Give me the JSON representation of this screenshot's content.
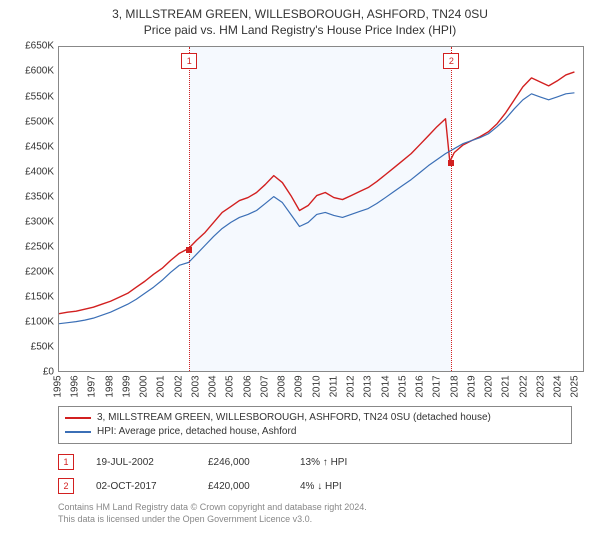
{
  "title_line1": "3, MILLSTREAM GREEN, WILLESBOROUGH, ASHFORD, TN24 0SU",
  "title_line2": "Price paid vs. HM Land Registry's House Price Index (HPI)",
  "chart": {
    "type": "line",
    "background_color": "#ffffff",
    "shaded_band_color": "#f4f8fe",
    "axis_color": "#888888",
    "tick_font_size": 10,
    "x": {
      "min": 1995,
      "max": 2025.5,
      "ticks": [
        1995,
        1996,
        1997,
        1998,
        1999,
        2000,
        2001,
        2002,
        2003,
        2004,
        2005,
        2006,
        2007,
        2008,
        2009,
        2010,
        2011,
        2012,
        2013,
        2014,
        2015,
        2016,
        2017,
        2018,
        2019,
        2020,
        2021,
        2022,
        2023,
        2024,
        2025
      ]
    },
    "y": {
      "min": 0,
      "max": 650000,
      "currency": "£",
      "ticks": [
        0,
        50000,
        100000,
        150000,
        200000,
        250000,
        300000,
        350000,
        400000,
        450000,
        500000,
        550000,
        600000,
        650000
      ],
      "labels": [
        "£0",
        "£50K",
        "£100K",
        "£150K",
        "£200K",
        "£250K",
        "£300K",
        "£350K",
        "£400K",
        "£450K",
        "£500K",
        "£550K",
        "£600K",
        "£650K"
      ]
    },
    "series": [
      {
        "key": "price_paid",
        "label": "3, MILLSTREAM GREEN, WILLESBOROUGH, ASHFORD, TN24 0SU (detached house)",
        "color": "#d22020",
        "line_width": 1.4,
        "points": [
          [
            1995.0,
            115000
          ],
          [
            1995.5,
            118000
          ],
          [
            1996.0,
            120000
          ],
          [
            1996.5,
            124000
          ],
          [
            1997.0,
            128000
          ],
          [
            1997.5,
            134000
          ],
          [
            1998.0,
            140000
          ],
          [
            1998.5,
            148000
          ],
          [
            1999.0,
            156000
          ],
          [
            1999.5,
            168000
          ],
          [
            2000.0,
            180000
          ],
          [
            2000.5,
            194000
          ],
          [
            2001.0,
            206000
          ],
          [
            2001.5,
            222000
          ],
          [
            2002.0,
            236000
          ],
          [
            2002.55,
            246000
          ],
          [
            2003.0,
            262000
          ],
          [
            2003.5,
            278000
          ],
          [
            2004.0,
            298000
          ],
          [
            2004.5,
            318000
          ],
          [
            2005.0,
            330000
          ],
          [
            2005.5,
            342000
          ],
          [
            2006.0,
            348000
          ],
          [
            2006.5,
            358000
          ],
          [
            2007.0,
            374000
          ],
          [
            2007.5,
            392000
          ],
          [
            2008.0,
            378000
          ],
          [
            2008.5,
            352000
          ],
          [
            2009.0,
            322000
          ],
          [
            2009.5,
            332000
          ],
          [
            2010.0,
            352000
          ],
          [
            2010.5,
            358000
          ],
          [
            2011.0,
            348000
          ],
          [
            2011.5,
            344000
          ],
          [
            2012.0,
            352000
          ],
          [
            2012.5,
            360000
          ],
          [
            2013.0,
            368000
          ],
          [
            2013.5,
            380000
          ],
          [
            2014.0,
            394000
          ],
          [
            2014.5,
            408000
          ],
          [
            2015.0,
            422000
          ],
          [
            2015.5,
            436000
          ],
          [
            2016.0,
            454000
          ],
          [
            2016.5,
            472000
          ],
          [
            2017.0,
            490000
          ],
          [
            2017.5,
            506000
          ],
          [
            2017.75,
            420000
          ],
          [
            2018.0,
            438000
          ],
          [
            2018.5,
            453000
          ],
          [
            2019.0,
            462000
          ],
          [
            2019.5,
            470000
          ],
          [
            2020.0,
            480000
          ],
          [
            2020.5,
            496000
          ],
          [
            2021.0,
            518000
          ],
          [
            2021.5,
            544000
          ],
          [
            2022.0,
            570000
          ],
          [
            2022.5,
            588000
          ],
          [
            2023.0,
            580000
          ],
          [
            2023.5,
            572000
          ],
          [
            2024.0,
            582000
          ],
          [
            2024.5,
            594000
          ],
          [
            2025.0,
            600000
          ]
        ]
      },
      {
        "key": "hpi",
        "label": "HPI: Average price, detached house, Ashford",
        "color": "#3b6fb6",
        "line_width": 1.2,
        "points": [
          [
            1995.0,
            95000
          ],
          [
            1995.5,
            97000
          ],
          [
            1996.0,
            99000
          ],
          [
            1996.5,
            102000
          ],
          [
            1997.0,
            106000
          ],
          [
            1997.5,
            112000
          ],
          [
            1998.0,
            118000
          ],
          [
            1998.5,
            126000
          ],
          [
            1999.0,
            134000
          ],
          [
            1999.5,
            144000
          ],
          [
            2000.0,
            156000
          ],
          [
            2000.5,
            168000
          ],
          [
            2001.0,
            182000
          ],
          [
            2001.5,
            198000
          ],
          [
            2002.0,
            212000
          ],
          [
            2002.55,
            218000
          ],
          [
            2003.0,
            234000
          ],
          [
            2003.5,
            252000
          ],
          [
            2004.0,
            270000
          ],
          [
            2004.5,
            286000
          ],
          [
            2005.0,
            298000
          ],
          [
            2005.5,
            308000
          ],
          [
            2006.0,
            314000
          ],
          [
            2006.5,
            322000
          ],
          [
            2007.0,
            336000
          ],
          [
            2007.5,
            350000
          ],
          [
            2008.0,
            338000
          ],
          [
            2008.5,
            314000
          ],
          [
            2009.0,
            290000
          ],
          [
            2009.5,
            298000
          ],
          [
            2010.0,
            314000
          ],
          [
            2010.5,
            318000
          ],
          [
            2011.0,
            312000
          ],
          [
            2011.5,
            308000
          ],
          [
            2012.0,
            314000
          ],
          [
            2012.5,
            320000
          ],
          [
            2013.0,
            326000
          ],
          [
            2013.5,
            336000
          ],
          [
            2014.0,
            348000
          ],
          [
            2014.5,
            360000
          ],
          [
            2015.0,
            372000
          ],
          [
            2015.5,
            384000
          ],
          [
            2016.0,
            398000
          ],
          [
            2016.5,
            412000
          ],
          [
            2017.0,
            424000
          ],
          [
            2017.5,
            436000
          ],
          [
            2018.0,
            446000
          ],
          [
            2018.5,
            456000
          ],
          [
            2019.0,
            462000
          ],
          [
            2019.5,
            468000
          ],
          [
            2020.0,
            476000
          ],
          [
            2020.5,
            490000
          ],
          [
            2021.0,
            506000
          ],
          [
            2021.5,
            526000
          ],
          [
            2022.0,
            544000
          ],
          [
            2022.5,
            556000
          ],
          [
            2023.0,
            550000
          ],
          [
            2023.5,
            544000
          ],
          [
            2024.0,
            550000
          ],
          [
            2024.5,
            556000
          ],
          [
            2025.0,
            558000
          ]
        ]
      }
    ],
    "sale_markers": [
      {
        "id": "1",
        "date": "19-JUL-2002",
        "x": 2002.55,
        "price": 246000,
        "price_label": "£246,000",
        "pct_vs_hpi": "13% ↑ HPI",
        "color": "#d22020"
      },
      {
        "id": "2",
        "date": "02-OCT-2017",
        "x": 2017.75,
        "price": 420000,
        "price_label": "£420,000",
        "pct_vs_hpi": "4% ↓ HPI",
        "color": "#d22020"
      }
    ]
  },
  "legend": {
    "rows": [
      {
        "color": "#d22020",
        "label": "3, MILLSTREAM GREEN, WILLESBOROUGH, ASHFORD, TN24 0SU (detached house)"
      },
      {
        "color": "#3b6fb6",
        "label": "HPI: Average price, detached house, Ashford"
      }
    ]
  },
  "footer_line1": "Contains HM Land Registry data © Crown copyright and database right 2024.",
  "footer_line2": "This data is licensed under the Open Government Licence v3.0."
}
